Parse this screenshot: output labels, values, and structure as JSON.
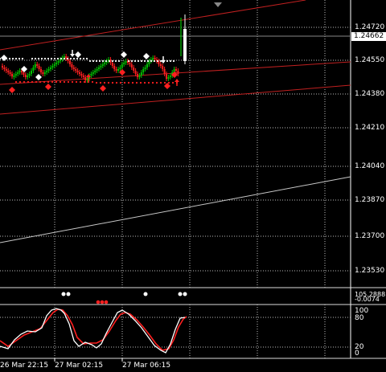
{
  "price_axis": {
    "labels": [
      "1.24720",
      "1.24550",
      "1.24380",
      "1.24210",
      "1.24040",
      "1.23870",
      "1.23700",
      "1.23530"
    ],
    "current_price": "1.24662"
  },
  "indicator_panel": {
    "labels": [
      "105.2888",
      "-0.0074"
    ]
  },
  "oscillator_panel": {
    "labels": [
      "100",
      "80",
      "20",
      "0"
    ],
    "levels": [
      80,
      20
    ]
  },
  "time_axis": {
    "labels": [
      "26 Mar 22:15",
      "27 Mar 02:15",
      "27 Mar 06:15"
    ]
  },
  "colors": {
    "background": "#000000",
    "grid": "#c0c0c0",
    "bull_candle": "#00c000",
    "bear_candle": "#ff2020",
    "buy_marker": "#ffffff",
    "sell_marker": "#ff2020",
    "channel_line": "#c02020",
    "trend_line": "#c8c8c8",
    "stoch_main": "#ffffff",
    "stoch_signal": "#ff2020"
  }
}
